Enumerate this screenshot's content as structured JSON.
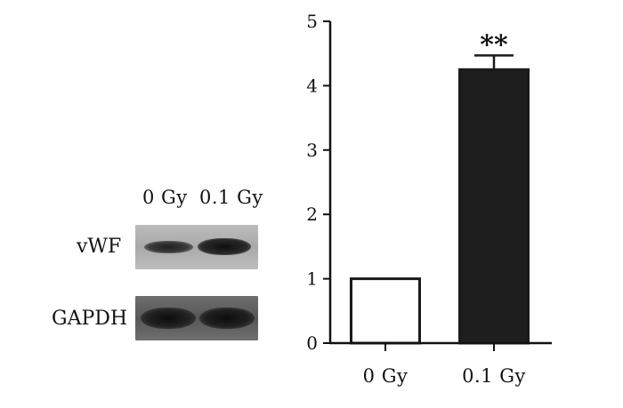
{
  "blot": {
    "lanes": [
      "0 Gy",
      "0.1 Gy"
    ],
    "rows": [
      "vWF",
      "GAPDH"
    ]
  },
  "colors": {
    "bar_control": "#ffffff",
    "bar_treated": "#1e1e1e",
    "axis": "#111111"
  },
  "chart_data": {
    "type": "bar",
    "categories": [
      "0 Gy",
      "0.1 Gy"
    ],
    "values": [
      1.0,
      4.25
    ],
    "error_bars": [
      0,
      0.22
    ],
    "annotations": [
      {
        "category": "0.1 Gy",
        "text": "**"
      }
    ],
    "title": "",
    "xlabel": "",
    "ylabel": "",
    "ylim": [
      0,
      5
    ],
    "yticks": [
      0,
      1,
      2,
      3,
      4,
      5
    ],
    "grid": false,
    "legend": "none"
  }
}
